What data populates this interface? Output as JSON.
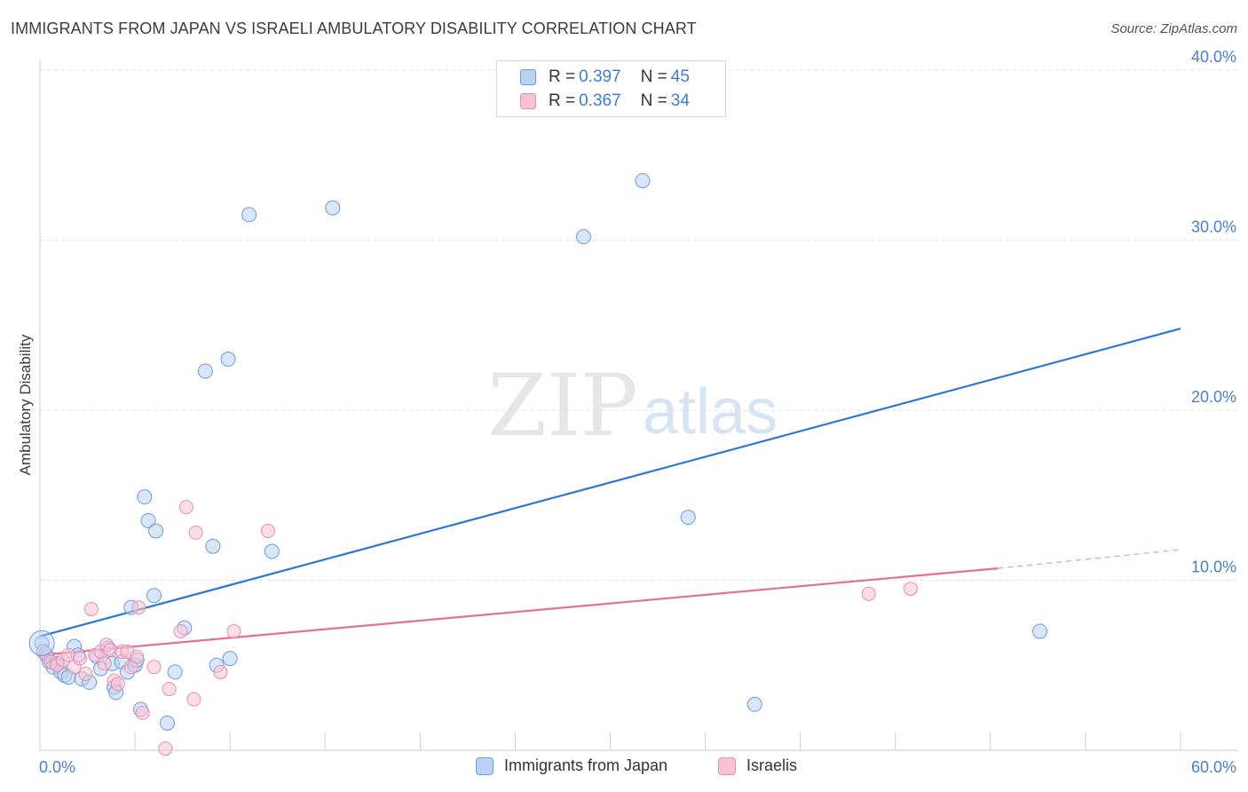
{
  "header": {
    "title": "IMMIGRANTS FROM JAPAN VS ISRAELI AMBULATORY DISABILITY CORRELATION CHART",
    "source": "Source: ZipAtlas.com"
  },
  "colors": {
    "blue_fill": "#b9d1f3",
    "blue_stroke": "#6f9ad9",
    "blue_line": "#2e78d2",
    "pink_fill": "#f7c3d3",
    "pink_stroke": "#e98fac",
    "pink_line": "#e46f9a",
    "tick_text": "#4a7fd0",
    "grid": "#e0e0e0"
  },
  "legend": {
    "rows": [
      {
        "r_label": "R = ",
        "r_value": "0.397",
        "n_label": "N = ",
        "n_value": "45",
        "series": "blue"
      },
      {
        "r_label": "R = ",
        "r_value": "0.367",
        "n_label": "N = ",
        "n_value": "34",
        "series": "pink"
      }
    ]
  },
  "watermark": {
    "zip": "ZIP",
    "atlas": "atlas"
  },
  "chart_data": {
    "type": "scatter",
    "title": "IMMIGRANTS FROM JAPAN VS ISRAELI AMBULATORY DISABILITY CORRELATION CHART",
    "xlabel": "",
    "ylabel": "Ambulatory Disability",
    "xlim": [
      0,
      60
    ],
    "ylim": [
      0,
      40
    ],
    "x_tick_labels": [
      "0.0%",
      "60.0%"
    ],
    "y_ticks": [
      10,
      20,
      30,
      40
    ],
    "y_tick_labels": [
      "10.0%",
      "20.0%",
      "30.0%",
      "40.0%"
    ],
    "legend_position": "top-center",
    "series": [
      {
        "name": "Immigrants from Japan",
        "color": "blue",
        "R": 0.397,
        "N": 45,
        "trend": {
          "x": [
            0,
            60
          ],
          "y": [
            6.7,
            24.8
          ]
        },
        "points": [
          [
            0.1,
            6.3
          ],
          [
            0.2,
            5.8
          ],
          [
            0.4,
            5.5
          ],
          [
            0.5,
            5.2
          ],
          [
            0.7,
            4.9
          ],
          [
            0.9,
            5.1
          ],
          [
            1.1,
            4.6
          ],
          [
            1.3,
            4.4
          ],
          [
            1.5,
            4.3
          ],
          [
            1.8,
            6.1
          ],
          [
            2.0,
            5.6
          ],
          [
            2.2,
            4.2
          ],
          [
            2.6,
            4.0
          ],
          [
            3.0,
            5.5
          ],
          [
            3.2,
            4.8
          ],
          [
            3.6,
            6.0
          ],
          [
            3.8,
            5.1
          ],
          [
            3.9,
            3.7
          ],
          [
            4.0,
            3.4
          ],
          [
            4.3,
            5.2
          ],
          [
            4.6,
            4.6
          ],
          [
            4.8,
            8.4
          ],
          [
            5.0,
            5.0
          ],
          [
            5.1,
            5.3
          ],
          [
            5.3,
            2.4
          ],
          [
            5.5,
            14.9
          ],
          [
            5.7,
            13.5
          ],
          [
            6.0,
            9.1
          ],
          [
            6.1,
            12.9
          ],
          [
            6.7,
            1.6
          ],
          [
            7.1,
            4.6
          ],
          [
            7.6,
            7.2
          ],
          [
            8.7,
            22.3
          ],
          [
            9.1,
            12.0
          ],
          [
            9.3,
            5.0
          ],
          [
            9.9,
            23.0
          ],
          [
            10.0,
            5.4
          ],
          [
            11.0,
            31.5
          ],
          [
            12.2,
            11.7
          ],
          [
            15.4,
            31.9
          ],
          [
            28.6,
            30.2
          ],
          [
            31.7,
            33.5
          ],
          [
            34.1,
            13.7
          ],
          [
            37.6,
            2.7
          ],
          [
            52.6,
            7.0
          ]
        ]
      },
      {
        "name": "Israelis",
        "color": "pink",
        "R": 0.367,
        "N": 34,
        "trend": {
          "x": [
            0,
            50.4
          ],
          "y": [
            5.6,
            10.7
          ]
        },
        "trend_dashed": {
          "x": [
            50.4,
            60
          ],
          "y": [
            10.7,
            11.8
          ]
        },
        "points": [
          [
            0.3,
            5.7
          ],
          [
            0.6,
            5.2
          ],
          [
            0.9,
            5.0
          ],
          [
            1.2,
            5.3
          ],
          [
            1.5,
            5.6
          ],
          [
            1.8,
            4.9
          ],
          [
            2.1,
            5.4
          ],
          [
            2.4,
            4.5
          ],
          [
            2.7,
            8.3
          ],
          [
            2.9,
            5.6
          ],
          [
            3.2,
            5.8
          ],
          [
            3.4,
            5.1
          ],
          [
            3.5,
            6.2
          ],
          [
            3.7,
            5.9
          ],
          [
            3.9,
            4.1
          ],
          [
            4.1,
            3.9
          ],
          [
            4.3,
            5.8
          ],
          [
            4.6,
            5.8
          ],
          [
            4.8,
            4.9
          ],
          [
            5.1,
            5.5
          ],
          [
            5.2,
            8.4
          ],
          [
            5.4,
            2.2
          ],
          [
            6.0,
            4.9
          ],
          [
            6.6,
            0.1
          ],
          [
            6.8,
            3.6
          ],
          [
            7.4,
            7.0
          ],
          [
            7.7,
            14.3
          ],
          [
            8.1,
            3.0
          ],
          [
            8.2,
            12.8
          ],
          [
            9.5,
            4.6
          ],
          [
            10.2,
            7.0
          ],
          [
            12.0,
            12.9
          ],
          [
            43.6,
            9.2
          ],
          [
            45.8,
            9.5
          ]
        ]
      }
    ]
  },
  "bottom_legend": {
    "items": [
      {
        "label": "Immigrants from Japan",
        "color": "blue"
      },
      {
        "label": "Israelis",
        "color": "pink"
      }
    ]
  }
}
